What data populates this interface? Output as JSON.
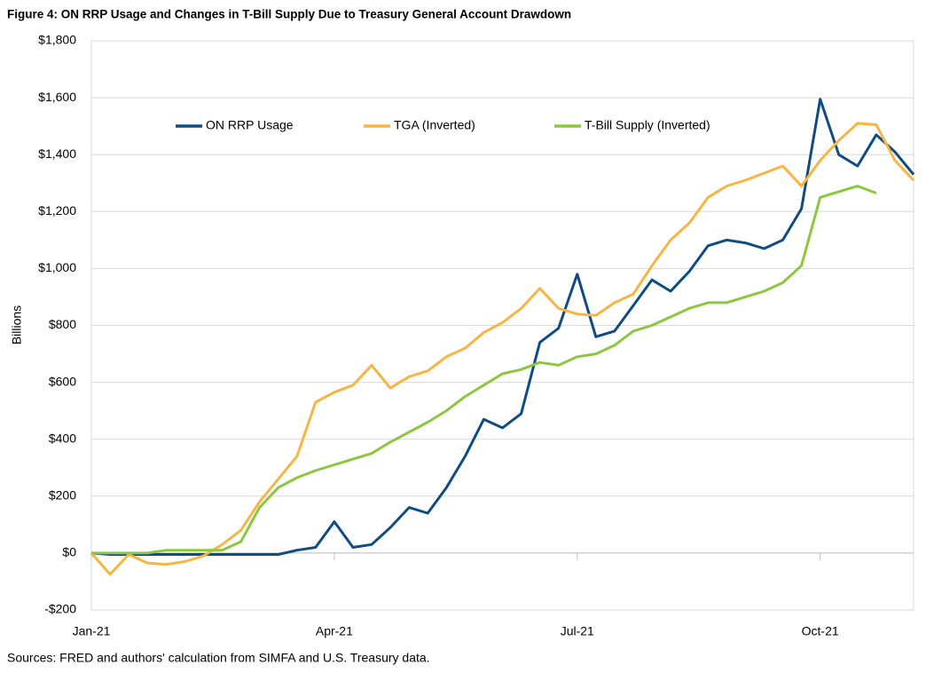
{
  "chart_data": {
    "type": "line",
    "title": "Figure 4: ON RRP Usage and Changes in T-Bill Supply Due to Treasury General Account Drawdown",
    "ylabel": "Billions",
    "source": "Sources: FRED and authors' calculation from SIMFA and U.S. Treasury data.",
    "categories": [
      "Jan-21",
      null,
      null,
      null,
      null,
      null,
      null,
      null,
      null,
      null,
      null,
      null,
      null,
      "Apr-21",
      null,
      null,
      null,
      null,
      null,
      null,
      null,
      null,
      null,
      null,
      null,
      null,
      "Jul-21",
      null,
      null,
      null,
      null,
      null,
      null,
      null,
      null,
      null,
      null,
      null,
      null,
      "Oct-21",
      null,
      null,
      null,
      null,
      null
    ],
    "series": [
      {
        "name": "ON RRP Usage",
        "color": "#0f4c81",
        "values": [
          0,
          -5,
          -5,
          -5,
          -5,
          -5,
          -5,
          -5,
          -5,
          -5,
          -5,
          10,
          20,
          110,
          20,
          30,
          90,
          160,
          140,
          230,
          340,
          470,
          440,
          490,
          740,
          790,
          980,
          760,
          780,
          870,
          960,
          920,
          990,
          1080,
          1100,
          1090,
          1070,
          1100,
          1210,
          1595,
          1400,
          1360,
          1470,
          1410,
          1330
        ]
      },
      {
        "name": "TGA (Inverted)",
        "color": "#f7b543",
        "values": [
          0,
          -75,
          -5,
          -35,
          -40,
          -30,
          -10,
          30,
          80,
          180,
          260,
          340,
          530,
          565,
          590,
          660,
          580,
          620,
          640,
          690,
          720,
          775,
          810,
          860,
          930,
          860,
          840,
          835,
          880,
          910,
          1010,
          1100,
          1160,
          1250,
          1290,
          1310,
          1335,
          1360,
          1290,
          1380,
          1450,
          1510,
          1505,
          1380,
          1310
        ]
      },
      {
        "name": "T-Bill Supply (Inverted)",
        "color": "#8dc63f",
        "values": [
          0,
          0,
          0,
          0,
          10,
          10,
          10,
          10,
          40,
          160,
          230,
          265,
          290,
          310,
          330,
          350,
          390,
          425,
          460,
          500,
          550,
          590,
          630,
          645,
          670,
          660,
          690,
          700,
          730,
          780,
          800,
          830,
          860,
          880,
          880,
          900,
          920,
          950,
          1010,
          1250,
          1270,
          1290,
          1265,
          null,
          null
        ]
      }
    ],
    "ylim": [
      -200,
      1800
    ],
    "yticks": [
      {
        "value": -200,
        "label": "-$200"
      },
      {
        "value": 0,
        "label": "$0"
      },
      {
        "value": 200,
        "label": "$200"
      },
      {
        "value": 400,
        "label": "$400"
      },
      {
        "value": 600,
        "label": "$600"
      },
      {
        "value": 800,
        "label": "$800"
      },
      {
        "value": 1000,
        "label": "$1,000"
      },
      {
        "value": 1200,
        "label": "$1,200"
      },
      {
        "value": 1400,
        "label": "$1,400"
      },
      {
        "value": 1600,
        "label": "$1,600"
      },
      {
        "value": 1800,
        "label": "$1,800"
      }
    ],
    "grid": true,
    "legend": "top"
  }
}
